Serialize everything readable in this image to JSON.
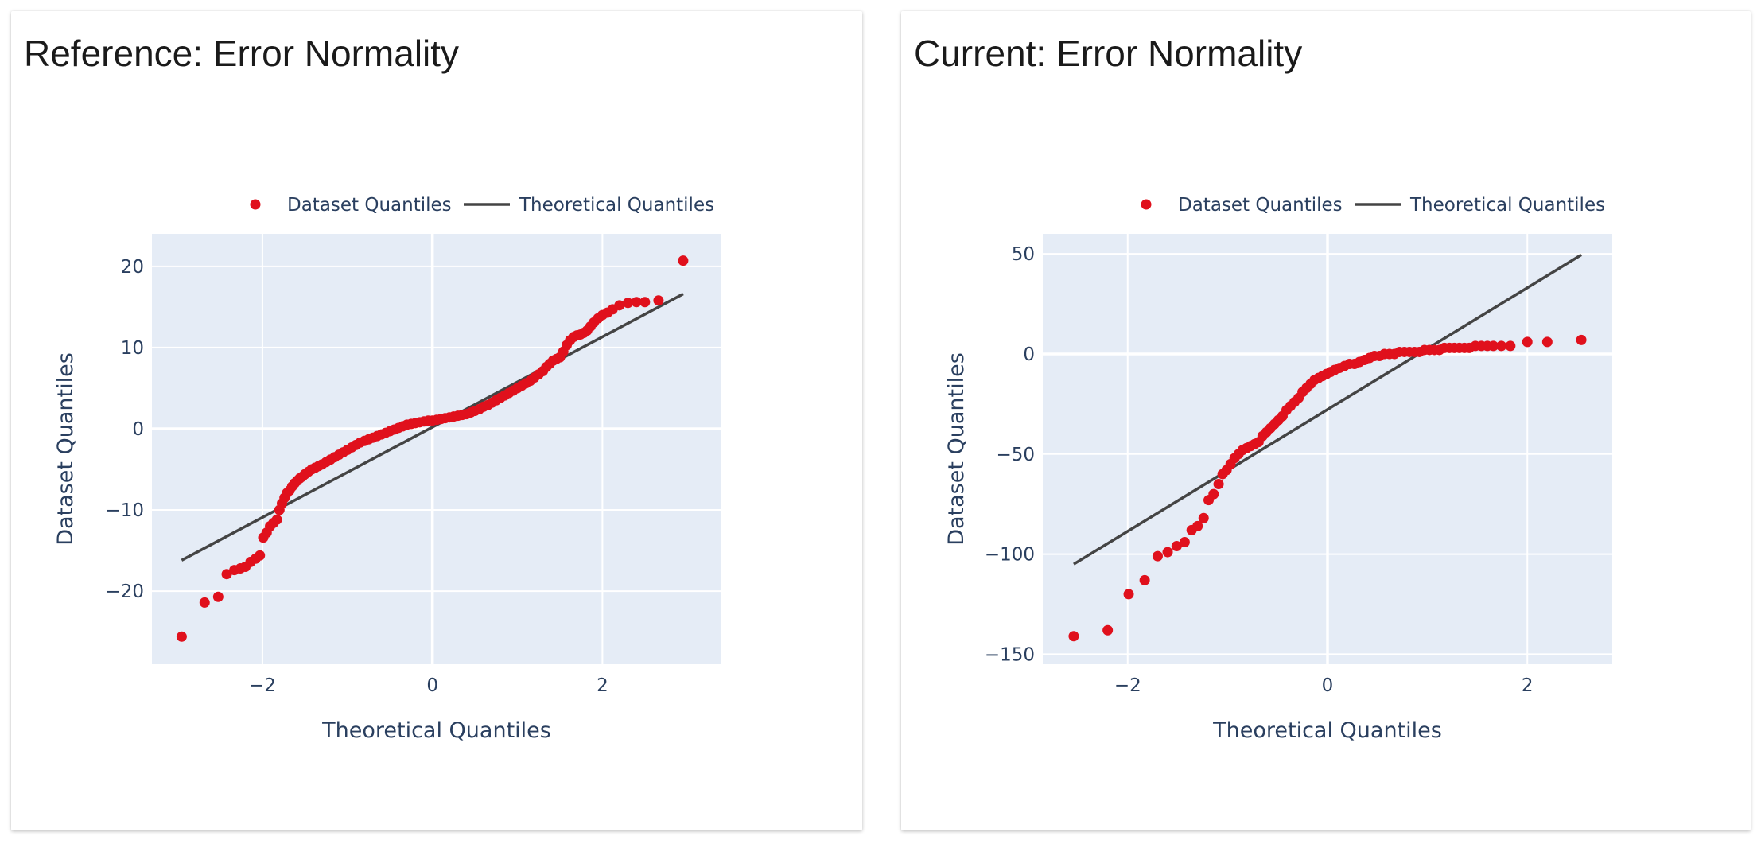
{
  "panels": [
    {
      "title": "Reference: Error Normality",
      "legend": {
        "points_label": "Dataset Quantiles",
        "line_label": "Theoretical Quantiles"
      }
    },
    {
      "title": "Current: Error Normality",
      "legend": {
        "points_label": "Dataset Quantiles",
        "line_label": "Theoretical Quantiles"
      }
    }
  ],
  "chart_data": [
    {
      "type": "scatter",
      "title": "Reference: Error Normality",
      "xlabel": "Theoretical Quantiles",
      "ylabel": "Dataset Quantiles",
      "xlim": [
        -3.3,
        3.4
      ],
      "ylim": [
        -29,
        24
      ],
      "xticks": [
        -2,
        0,
        2
      ],
      "yticks": [
        -20,
        -10,
        0,
        10,
        20
      ],
      "grid": true,
      "legend_position": "top",
      "colors": {
        "points": "#e0101c",
        "line": "#444444",
        "plot_bg": "#e5ecf6"
      },
      "series": [
        {
          "name": "Dataset Quantiles",
          "mode": "markers",
          "x": [
            -2.95,
            -2.68,
            -2.52,
            -2.42,
            -2.33,
            -2.26,
            -2.2,
            -2.14,
            -2.08,
            -2.03,
            -1.99,
            -1.95,
            -1.91,
            -1.87,
            -1.83,
            -1.8,
            -1.77,
            -1.74,
            -1.71,
            -1.68,
            -1.65,
            -1.62,
            -1.59,
            -1.56,
            -1.53,
            -1.5,
            -1.46,
            -1.42,
            -1.38,
            -1.34,
            -1.3,
            -1.25,
            -1.2,
            -1.15,
            -1.1,
            -1.05,
            -1.0,
            -0.95,
            -0.9,
            -0.85,
            -0.8,
            -0.75,
            -0.7,
            -0.65,
            -0.6,
            -0.55,
            -0.5,
            -0.45,
            -0.4,
            -0.35,
            -0.3,
            -0.25,
            -0.2,
            -0.15,
            -0.1,
            -0.05,
            0.0,
            0.05,
            0.1,
            0.15,
            0.2,
            0.25,
            0.3,
            0.35,
            0.4,
            0.45,
            0.5,
            0.55,
            0.6,
            0.65,
            0.7,
            0.75,
            0.8,
            0.85,
            0.9,
            0.95,
            1.0,
            1.05,
            1.1,
            1.15,
            1.2,
            1.25,
            1.3,
            1.34,
            1.38,
            1.42,
            1.46,
            1.5,
            1.54,
            1.58,
            1.62,
            1.66,
            1.7,
            1.74,
            1.78,
            1.82,
            1.86,
            1.9,
            1.95,
            2.0,
            2.06,
            2.12,
            2.2,
            2.3,
            2.4,
            2.5,
            2.66,
            2.95
          ],
          "y": [
            -25.6,
            -21.4,
            -20.7,
            -17.9,
            -17.4,
            -17.2,
            -17.0,
            -16.4,
            -16.0,
            -15.6,
            -13.4,
            -12.8,
            -12.0,
            -11.6,
            -11.2,
            -10.0,
            -9.2,
            -8.5,
            -7.9,
            -7.6,
            -7.1,
            -6.7,
            -6.4,
            -6.1,
            -5.9,
            -5.6,
            -5.3,
            -5.0,
            -4.8,
            -4.6,
            -4.4,
            -4.1,
            -3.8,
            -3.5,
            -3.2,
            -2.9,
            -2.6,
            -2.3,
            -2.0,
            -1.7,
            -1.5,
            -1.3,
            -1.1,
            -0.9,
            -0.7,
            -0.5,
            -0.3,
            -0.1,
            0.1,
            0.3,
            0.5,
            0.6,
            0.7,
            0.8,
            0.9,
            1.0,
            1.0,
            1.1,
            1.2,
            1.3,
            1.4,
            1.5,
            1.6,
            1.7,
            1.8,
            2.0,
            2.2,
            2.4,
            2.7,
            2.9,
            3.2,
            3.5,
            3.8,
            4.1,
            4.4,
            4.7,
            5.0,
            5.3,
            5.6,
            5.9,
            6.3,
            6.7,
            7.1,
            7.6,
            8.0,
            8.4,
            8.6,
            8.8,
            9.5,
            10.3,
            10.9,
            11.3,
            11.5,
            11.6,
            11.8,
            12.1,
            12.6,
            13.1,
            13.6,
            14.0,
            14.3,
            14.7,
            15.2,
            15.5,
            15.6,
            15.6,
            15.8,
            20.7
          ]
        },
        {
          "name": "Theoretical Quantiles",
          "mode": "lines",
          "x": [
            -2.95,
            2.95
          ],
          "y": [
            -16.2,
            16.6
          ]
        }
      ]
    },
    {
      "type": "scatter",
      "title": "Current: Error Normality",
      "xlabel": "Theoretical Quantiles",
      "ylabel": "Dataset Quantiles",
      "xlim": [
        -2.85,
        2.85
      ],
      "ylim": [
        -155,
        60
      ],
      "xticks": [
        -2,
        0,
        2
      ],
      "yticks": [
        -150,
        -100,
        -50,
        0,
        50
      ],
      "grid": true,
      "legend_position": "top",
      "colors": {
        "points": "#e0101c",
        "line": "#444444",
        "plot_bg": "#e5ecf6"
      },
      "series": [
        {
          "name": "Dataset Quantiles",
          "mode": "markers",
          "x": [
            -2.54,
            -2.2,
            -1.99,
            -1.83,
            -1.7,
            -1.6,
            -1.51,
            -1.43,
            -1.36,
            -1.3,
            -1.24,
            -1.19,
            -1.14,
            -1.09,
            -1.05,
            -1.01,
            -0.97,
            -0.93,
            -0.89,
            -0.85,
            -0.81,
            -0.77,
            -0.73,
            -0.69,
            -0.65,
            -0.61,
            -0.57,
            -0.53,
            -0.49,
            -0.45,
            -0.41,
            -0.37,
            -0.33,
            -0.29,
            -0.25,
            -0.21,
            -0.17,
            -0.13,
            -0.09,
            -0.05,
            -0.01,
            0.03,
            0.07,
            0.12,
            0.17,
            0.22,
            0.27,
            0.32,
            0.37,
            0.42,
            0.47,
            0.52,
            0.57,
            0.62,
            0.67,
            0.72,
            0.77,
            0.82,
            0.87,
            0.92,
            0.97,
            1.02,
            1.07,
            1.12,
            1.17,
            1.22,
            1.27,
            1.32,
            1.37,
            1.42,
            1.48,
            1.54,
            1.6,
            1.66,
            1.74,
            1.83,
            2.0,
            2.2,
            2.54
          ],
          "y": [
            -141,
            -138,
            -120,
            -113,
            -101,
            -99,
            -96,
            -94,
            -88,
            -86,
            -82,
            -73,
            -70,
            -65,
            -60,
            -58,
            -55,
            -52,
            -50,
            -48,
            -47,
            -46,
            -45,
            -44,
            -41,
            -39,
            -37,
            -35,
            -33,
            -31,
            -28,
            -26,
            -24,
            -22,
            -19,
            -17,
            -15,
            -13,
            -12,
            -11,
            -10,
            -9,
            -8,
            -7,
            -6,
            -5,
            -5,
            -4,
            -3,
            -2,
            -1,
            -1,
            0,
            0,
            0,
            1,
            1,
            1,
            1,
            1,
            2,
            2,
            2,
            2,
            3,
            3,
            3,
            3,
            3,
            3,
            4,
            4,
            4,
            4,
            4,
            4,
            6,
            6,
            7
          ]
        },
        {
          "name": "Theoretical Quantiles",
          "mode": "lines",
          "x": [
            -2.54,
            2.54
          ],
          "y": [
            -105,
            49.5
          ]
        }
      ]
    }
  ]
}
